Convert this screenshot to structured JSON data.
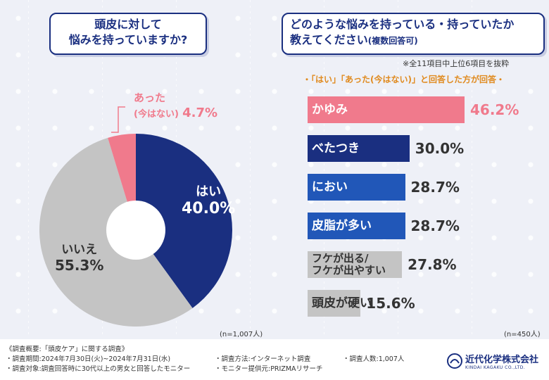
{
  "left_question": {
    "line1": "頭皮に対して",
    "line2": "悩みを持っていますか?"
  },
  "right_question": {
    "main": "どのような悩みを持っている・持っていたか",
    "line2": "教えてください",
    "suffix": "(複数回答可)"
  },
  "right_note": "※全11項目中上位6項目を抜粋",
  "right_subnote": "・「はい」「あった(今はない)」と回答した方が回答・",
  "left_n": "(n=1,007人)",
  "right_n": "(n=450人)",
  "colors": {
    "navy": "#1a2f80",
    "blue": "#2157b8",
    "pink": "#f07a8c",
    "gray": "#c4c4c4",
    "dark_text": "#333333"
  },
  "chart_data": [
    {
      "type": "pie",
      "title": "頭皮に対して悩みを持っていますか?",
      "slices": [
        {
          "label": "はい",
          "value": 40.0,
          "display": "40.0%",
          "color": "#1a2f80"
        },
        {
          "label": "いいえ",
          "value": 55.3,
          "display": "55.3%",
          "color": "#c4c4c4"
        },
        {
          "label": "あった(今はない)",
          "label_line1": "あった",
          "label_line2": "(今はない)",
          "value": 4.7,
          "display": "4.7%",
          "color": "#f07a8c"
        }
      ]
    },
    {
      "type": "bar",
      "orientation": "horizontal",
      "title": "どのような悩みを持っている・持っていたか教えてください(複数回答可)",
      "xlim": [
        0,
        46.2
      ],
      "items": [
        {
          "label": "かゆみ",
          "value": 46.2,
          "display": "46.2%",
          "color": "#f07a8c"
        },
        {
          "label": "べたつき",
          "value": 30.0,
          "display": "30.0%",
          "color": "#1a2f80"
        },
        {
          "label": "におい",
          "value": 28.7,
          "display": "28.7%",
          "color": "#2157b8"
        },
        {
          "label": "皮脂が多い",
          "value": 28.7,
          "display": "28.7%",
          "color": "#2157b8"
        },
        {
          "label": "フケが出る/フケが出やすい",
          "label_line1": "フケが出る/",
          "label_line2": "フケが出やすい",
          "value": 27.8,
          "display": "27.8%",
          "color": "#c4c4c4"
        },
        {
          "label": "頭皮が硬い",
          "value": 15.6,
          "display": "15.6%",
          "color": "#c4c4c4"
        }
      ]
    }
  ],
  "footer": {
    "summary": "《調査概要:「頭皮ケア」に関する調査》",
    "period": "・調査期間:2024年7月30日(火)~2024年7月31日(水)",
    "method": "・調査方法:インターネット調査",
    "count": "・調査人数:1,007人",
    "target": "・調査対象:調査回答時に30代以上の男女と回答したモニター",
    "provider": "・モニター提供元:PRIZMAリサーチ",
    "logo_text": "近代化学株式会社",
    "logo_sub": "KINDAI KAGAKU CO.,LTD."
  }
}
